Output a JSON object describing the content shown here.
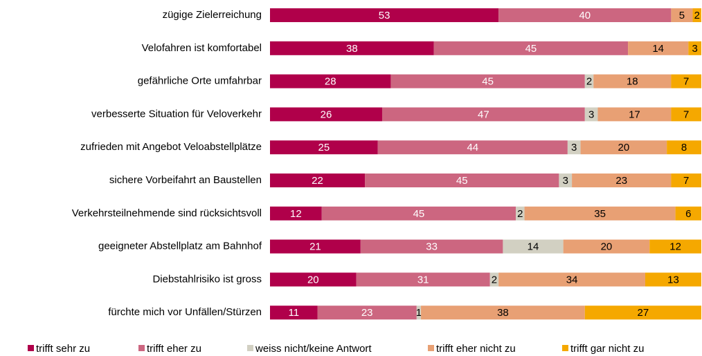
{
  "chart_data": {
    "type": "stacked-bar-horizontal",
    "categories": [
      "zügige Zielerreichung",
      "Velofahren ist komfortabel",
      "gefährliche Orte umfahrbar",
      "verbesserte Situation für Veloverkehr",
      "zufrieden mit Angebot Veloabstellplätze",
      "sichere Vorbeifahrt an Baustellen",
      "Verkehrsteilnehmende sind rücksichtsvoll",
      "geeigneter Abstellplatz am Bahnhof",
      "Diebstahlrisiko ist gross",
      "fürchte mich vor Unfällen/Stürzen"
    ],
    "series": [
      {
        "name": "trifft sehr zu",
        "color": "#b0004a",
        "label_color": "#ffffff",
        "values": [
          53,
          38,
          28,
          26,
          25,
          22,
          12,
          21,
          20,
          11
        ]
      },
      {
        "name": "trifft eher zu",
        "color": "#cc6680",
        "label_color": "#ffffff",
        "values": [
          40,
          45,
          45,
          47,
          44,
          45,
          45,
          33,
          31,
          23
        ]
      },
      {
        "name": "weiss nicht/keine Antwort",
        "color": "#d2d0c2",
        "label_color": "#000000",
        "values": [
          null,
          null,
          2,
          3,
          3,
          3,
          2,
          14,
          2,
          1
        ]
      },
      {
        "name": "trifft eher nicht zu",
        "color": "#e8a074",
        "label_color": "#000000",
        "values": [
          5,
          14,
          18,
          17,
          20,
          23,
          35,
          20,
          34,
          38
        ]
      },
      {
        "name": "trifft gar nicht zu",
        "color": "#f5a800",
        "label_color": "#000000",
        "values": [
          2,
          3,
          7,
          7,
          8,
          7,
          6,
          12,
          13,
          27
        ]
      }
    ],
    "xlim": [
      0,
      100
    ],
    "legend": "bottom"
  }
}
